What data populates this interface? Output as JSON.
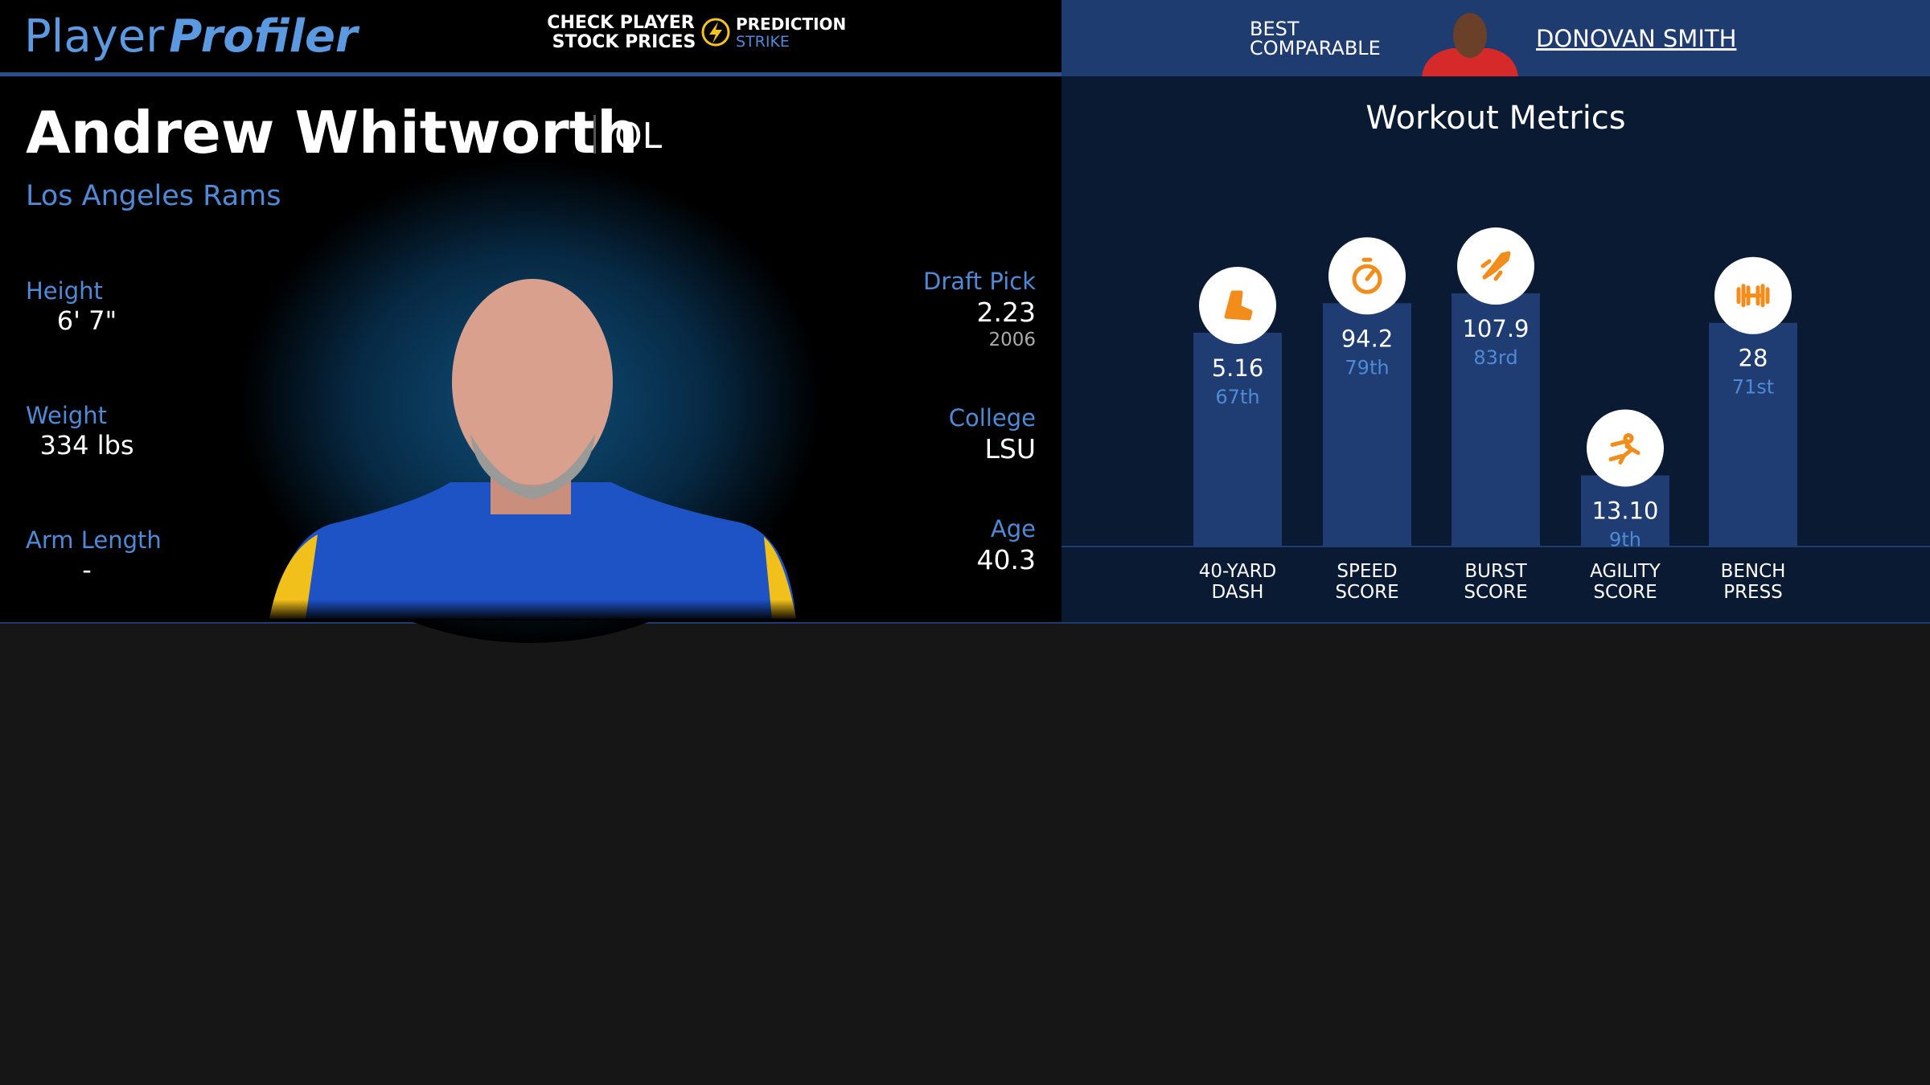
{
  "header": {
    "logo_left": "Player",
    "logo_right": "Profiler",
    "promo_line1": "CHECK PLAYER",
    "promo_line2": "STOCK PRICES",
    "brand_line1": "PREDICTION",
    "brand_line2": "STRIKE",
    "comparable_line1": "BEST",
    "comparable_line2": "COMPARABLE",
    "comparable_name": "DONOVAN SMITH"
  },
  "player": {
    "name": "Andrew Whitworth",
    "position": "OL",
    "team": "Los Angeles Rams",
    "left_stats": [
      {
        "label": "Height",
        "value": "6' 7\""
      },
      {
        "label": "Weight",
        "value": "334 lbs"
      },
      {
        "label": "Arm Length",
        "value": "-"
      }
    ],
    "draft": {
      "label": "Draft Pick",
      "value": "2.23",
      "year": "2006"
    },
    "right_stats": [
      {
        "label": "College",
        "value": "LSU"
      },
      {
        "label": "Age",
        "value": "40.3"
      }
    ]
  },
  "metrics": {
    "title": "Workout Metrics",
    "items": [
      {
        "line1": "40-YARD",
        "line2": "DASH",
        "value": "5.16",
        "percentile": {
          "value": 67,
          "label": "67th"
        }
      },
      {
        "line1": "SPEED",
        "line2": "SCORE",
        "value": "94.2",
        "percentile": {
          "value": 79,
          "label": "79th"
        }
      },
      {
        "line1": "BURST",
        "line2": "SCORE",
        "value": "107.9",
        "percentile": {
          "value": 83,
          "label": "83rd"
        }
      },
      {
        "line1": "AGILITY",
        "line2": "SCORE",
        "value": "13.10",
        "percentile": {
          "value": 9,
          "label": "9th"
        }
      },
      {
        "line1": "BENCH",
        "line2": "PRESS",
        "value": "28",
        "percentile": {
          "value": 71,
          "label": "71st"
        }
      }
    ]
  }
}
